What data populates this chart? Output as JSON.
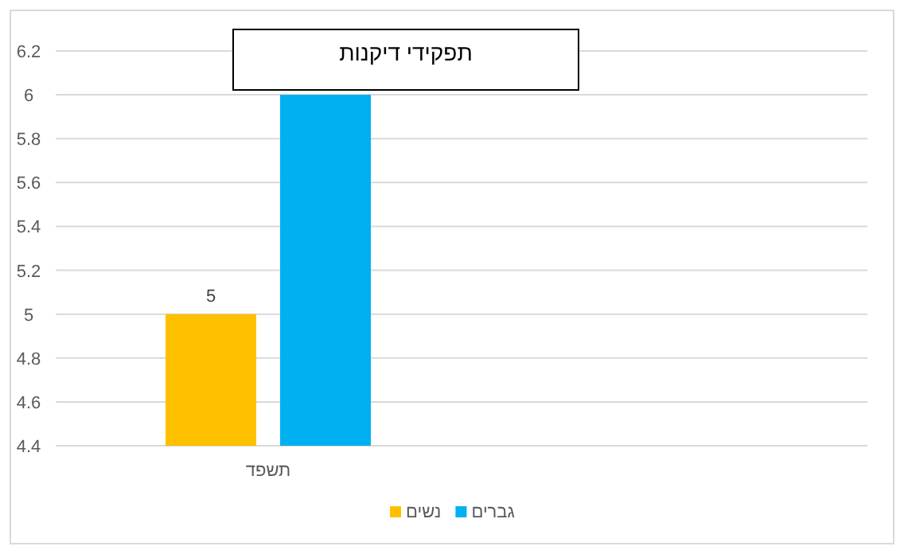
{
  "chart_data": {
    "type": "bar",
    "title": "תפקידי דיקנות",
    "categories": [
      "תשפד"
    ],
    "series": [
      {
        "name": "נשים",
        "color": "#ffc000",
        "values": [
          5
        ],
        "value_labels": [
          "5"
        ]
      },
      {
        "name": "גברים",
        "color": "#00b0f0",
        "values": [
          6
        ]
      }
    ],
    "ylim": [
      4.4,
      6.2
    ],
    "yticks": [
      4.4,
      4.6,
      4.8,
      5,
      5.2,
      5.4,
      5.6,
      5.8,
      6,
      6.2
    ],
    "grid": "y",
    "legend": "bottom"
  }
}
